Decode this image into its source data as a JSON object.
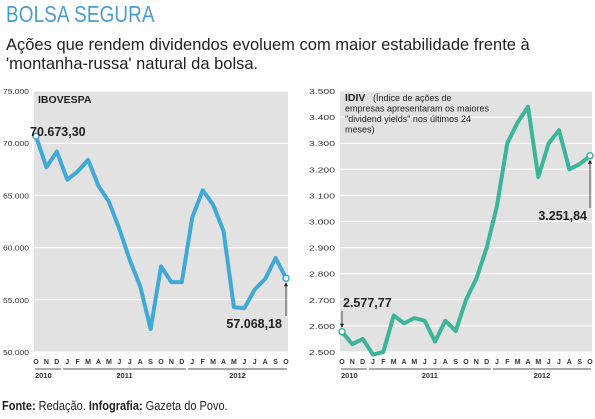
{
  "header": {
    "title": "BOLSA SEGURA",
    "subtitle": "Ações que rendem dividendos evoluem com maior estabilidade frente à 'montanha-russa' natural da bolsa."
  },
  "footer": {
    "source_label": "Fonte:",
    "source_value": "Redação.",
    "credit_label": "Infografia:",
    "credit_value": "Gazeta do Povo."
  },
  "colors": {
    "ibovespa_line": "#41a9d6",
    "idiv_line": "#3cb598",
    "title": "#4a9ccf",
    "panel_bg": "#e2e2e2"
  },
  "chart_data": [
    {
      "type": "line",
      "title": "IBOVESPA",
      "categories": [
        "O",
        "N",
        "D",
        "J",
        "F",
        "M",
        "A",
        "M",
        "J",
        "J",
        "A",
        "S",
        "O",
        "N",
        "D",
        "J",
        "F",
        "M",
        "A",
        "M",
        "J",
        "J",
        "A",
        "S",
        "O"
      ],
      "year_labels": [
        {
          "label": "2010",
          "start": 0,
          "end": 2
        },
        {
          "label": "2011",
          "start": 3,
          "end": 14
        },
        {
          "label": "2012",
          "start": 15,
          "end": 24
        }
      ],
      "series": [
        {
          "values": [
            70673.3,
            67700,
            69200,
            66500,
            67300,
            68400,
            65900,
            64400,
            61800,
            58800,
            56300,
            52200,
            58200,
            56700,
            56700,
            62900,
            65500,
            64100,
            61600,
            54300,
            54200,
            56000,
            57000,
            59000,
            57068.18
          ]
        }
      ],
      "ylim": [
        50000,
        75000
      ],
      "yticks": [
        "50.000",
        "55.000",
        "60.000",
        "65.000",
        "70.000",
        "75.000"
      ],
      "ytick_values": [
        50000,
        55000,
        60000,
        65000,
        70000,
        75000
      ],
      "start_label": "70.673,30",
      "end_label": "57.068,18"
    },
    {
      "type": "line",
      "title": "IDIV",
      "title_note": "(Índice de ações de empresas apresentaram os maiores \"dividend yields\" nos últimos 24 meses)",
      "categories": [
        "O",
        "N",
        "D",
        "J",
        "F",
        "M",
        "A",
        "M",
        "J",
        "J",
        "A",
        "S",
        "O",
        "N",
        "D",
        "J",
        "F",
        "M",
        "A",
        "M",
        "J",
        "J",
        "A",
        "S",
        "O"
      ],
      "year_labels": [
        {
          "label": "2010",
          "start": 0,
          "end": 2
        },
        {
          "label": "2011",
          "start": 3,
          "end": 14
        },
        {
          "label": "2012",
          "start": 15,
          "end": 24
        }
      ],
      "series": [
        {
          "values": [
            2577.77,
            2530,
            2550,
            2490,
            2500,
            2640,
            2610,
            2630,
            2620,
            2540,
            2620,
            2580,
            2700,
            2780,
            2900,
            3060,
            3300,
            3380,
            3440,
            3170,
            3300,
            3350,
            3200,
            3220,
            3251.84
          ]
        }
      ],
      "ylim": [
        2500,
        3500
      ],
      "yticks": [
        "2.500",
        "2.600",
        "2.700",
        "2.800",
        "2.900",
        "3.000",
        "3.100",
        "3.200",
        "3.300",
        "3.400",
        "3.500"
      ],
      "ytick_values": [
        2500,
        2600,
        2700,
        2800,
        2900,
        3000,
        3100,
        3200,
        3300,
        3400,
        3500
      ],
      "start_label": "2.577,77",
      "end_label": "3.251,84"
    }
  ]
}
